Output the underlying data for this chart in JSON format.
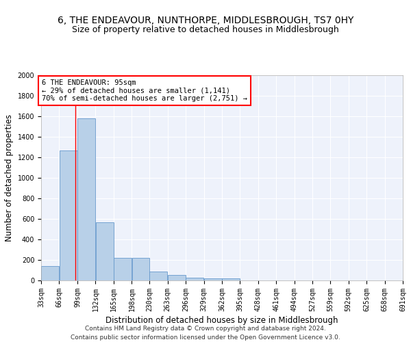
{
  "title": "6, THE ENDEAVOUR, NUNTHORPE, MIDDLESBROUGH, TS7 0HY",
  "subtitle": "Size of property relative to detached houses in Middlesbrough",
  "xlabel": "Distribution of detached houses by size in Middlesbrough",
  "ylabel": "Number of detached properties",
  "footer_line1": "Contains HM Land Registry data © Crown copyright and database right 2024.",
  "footer_line2": "Contains public sector information licensed under the Open Government Licence v3.0.",
  "annotation_line1": "6 THE ENDEAVOUR: 95sqm",
  "annotation_line2": "← 29% of detached houses are smaller (1,141)",
  "annotation_line3": "70% of semi-detached houses are larger (2,751) →",
  "bar_color": "#b8d0e8",
  "bar_edge_color": "#6699cc",
  "subject_size": 95,
  "bins": [
    33,
    66,
    99,
    132,
    165,
    198,
    230,
    263,
    296,
    329,
    362,
    395,
    428,
    461,
    494,
    527,
    559,
    592,
    625,
    658,
    691
  ],
  "bin_labels": [
    "33sqm",
    "66sqm",
    "99sqm",
    "132sqm",
    "165sqm",
    "198sqm",
    "230sqm",
    "263sqm",
    "296sqm",
    "329sqm",
    "362sqm",
    "395sqm",
    "428sqm",
    "461sqm",
    "494sqm",
    "527sqm",
    "559sqm",
    "592sqm",
    "625sqm",
    "658sqm",
    "691sqm"
  ],
  "values": [
    140,
    1270,
    1580,
    570,
    220,
    220,
    90,
    55,
    30,
    18,
    18,
    0,
    0,
    0,
    0,
    0,
    0,
    0,
    0,
    0
  ],
  "ylim": [
    0,
    2000
  ],
  "yticks": [
    0,
    200,
    400,
    600,
    800,
    1000,
    1200,
    1400,
    1600,
    1800,
    2000
  ],
  "background_color": "#eef2fb",
  "grid_color": "#ffffff",
  "title_fontsize": 10,
  "subtitle_fontsize": 9,
  "axis_label_fontsize": 8.5,
  "tick_fontsize": 7,
  "annotation_fontsize": 7.5,
  "footer_fontsize": 6.5
}
